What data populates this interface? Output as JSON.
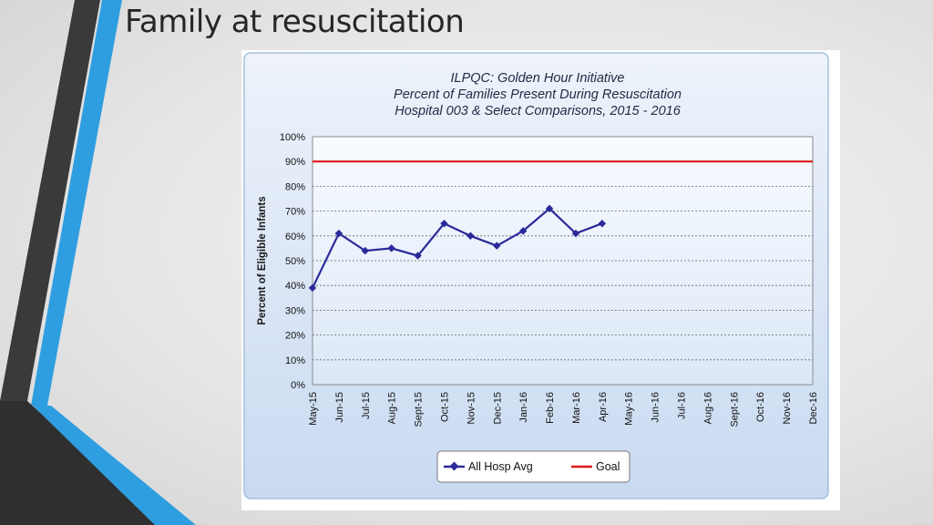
{
  "slide": {
    "title": "Family at resuscitation"
  },
  "colors": {
    "series_line": "#2a2a9a",
    "goal_line": "#e01919",
    "plot_bg_top": "#f8fbff",
    "plot_bg_bottom": "#dce8f7",
    "panel_bg_top": "#eef3fb",
    "panel_bg_bottom": "#c9daf1",
    "accent_stripe": "#2f9ee0",
    "dark_stripe": "#3a3a3a"
  },
  "chart_data": {
    "type": "line",
    "title_lines": [
      "ILPQC: Golden Hour Initiative",
      "Percent of Families Present During Resuscitation",
      "Hospital 003 & Select Comparisons, 2015 - 2016"
    ],
    "xlabel": "",
    "ylabel": "Percent of Eligible Infants",
    "ylim": [
      0,
      100
    ],
    "y_ticks": [
      0,
      10,
      20,
      30,
      40,
      50,
      60,
      70,
      80,
      90,
      100
    ],
    "y_tick_labels": [
      "0%",
      "10%",
      "20%",
      "30%",
      "40%",
      "50%",
      "60%",
      "70%",
      "80%",
      "90%",
      "100%"
    ],
    "categories": [
      "May-15",
      "Jun-15",
      "Jul-15",
      "Aug-15",
      "Sept-15",
      "Oct-15",
      "Nov-15",
      "Dec-15",
      "Jan-16",
      "Feb-16",
      "Mar-16",
      "Apr-16",
      "May-16",
      "Jun-16",
      "Jul-16",
      "Aug-16",
      "Sept-16",
      "Oct-16",
      "Nov-16",
      "Dec-16"
    ],
    "grid": true,
    "legend_position": "bottom",
    "series": [
      {
        "name": "All Hosp Avg",
        "values": [
          39,
          61,
          54,
          55,
          52,
          65,
          60,
          56,
          62,
          71,
          61,
          65,
          null,
          null,
          null,
          null,
          null,
          null,
          null,
          null
        ]
      },
      {
        "name": "Goal",
        "values": [
          90,
          90,
          90,
          90,
          90,
          90,
          90,
          90,
          90,
          90,
          90,
          90,
          90,
          90,
          90,
          90,
          90,
          90,
          90,
          90
        ]
      }
    ]
  }
}
